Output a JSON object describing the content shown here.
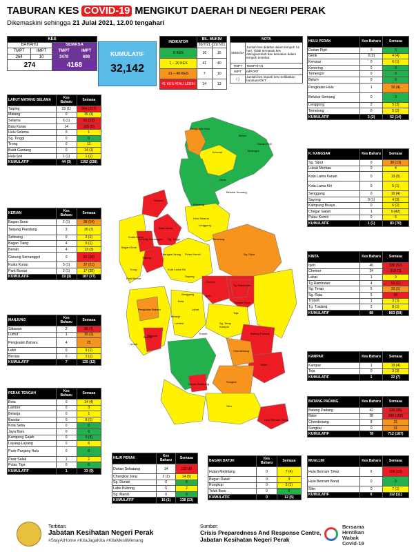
{
  "title": {
    "pre": "TABURAN KES",
    "highlight": "COVID-19",
    "post": "MENGIKUT DAERAH DI NEGERI PERAK"
  },
  "subtitle": {
    "pre": "Dikemaskini sehingga",
    "date": "21 Julai 2021, 12.00 tengahari"
  },
  "summary": {
    "kes_label": "KES",
    "baharu_label": "BAHARU",
    "semasa_label": "SEMASA",
    "tmpt_label": "TMPT",
    "impt_label": "IMPT",
    "baharu_tmpt": "264",
    "baharu_impt": "10",
    "semasa_tmpt": "3470",
    "semasa_impt": "698",
    "baharu_total": "274",
    "semasa_total": "4168",
    "kumulatif_label": "KUMULATIF",
    "kumulatif_value": "32,142"
  },
  "indicator": {
    "h1": "INDIKATOR",
    "h2": "BIL. MUKIM",
    "d1": "20/7/21",
    "d2": "21/7/21",
    "rows": [
      {
        "label": "0 KES",
        "a": "16",
        "b": "15",
        "color": "#22b14c"
      },
      {
        "label": "1 – 20 KES",
        "a": "41",
        "b": "40",
        "color": "#fff200"
      },
      {
        "label": "21 – 40 KES",
        "a": "7",
        "b": "10",
        "color": "#f7941d"
      },
      {
        "label": "41 KES ATAU LEBIH",
        "a": "14",
        "b": "13",
        "color": "#ed1c24"
      }
    ]
  },
  "nota": {
    "title": "NOTA",
    "semasa_label": "SEMASA",
    "semasa_text": "Jumlah kes didaftar dalam tempoh 14 hari. Tidak termasuk kes discaj/sembuh dan kematian dalam tempoh tersebut.",
    "tmpt_label": "TMPT",
    "tmpt_text": "TEMPATAN",
    "impt_label": "IMPT",
    "impt_text": "IMPORT",
    "paren_label": "( )",
    "paren_text": "Jumlah kes import/ kes melibatkan banduan/OKT"
  },
  "districts": [
    {
      "key": "larut",
      "name": "LARUT MATANG SELAMA",
      "h1": "Kes Baharu",
      "h2": "Semasa",
      "rows": [
        [
          "Taiping",
          "23 (1)",
          "964 (217)",
          "r"
        ],
        [
          "Matang",
          "0",
          "35 (1)",
          "y"
        ],
        [
          "Selama",
          "6 (1)",
          "61 (13)",
          "r"
        ],
        [
          "Batu Kurau",
          "14",
          "105 (5)",
          "r"
        ],
        [
          "Hulu Selama",
          "0",
          "1",
          "y"
        ],
        [
          "Sg. Tinggi",
          "0",
          "0",
          "g"
        ],
        [
          "Trong",
          "0",
          "11",
          "y"
        ],
        [
          "Bukit Gantang",
          "0",
          "14 (1)",
          "y"
        ],
        [
          "Hulu Ijok",
          "1 (1)",
          "1 (1)",
          "y"
        ]
      ],
      "total": [
        "KUMULATIF",
        "44 (3)",
        "1192 (238)"
      ]
    },
    {
      "key": "kerian",
      "name": "KERIAN",
      "h1": "Kes Baharu",
      "h2": "Semasa",
      "rows": [
        [
          "Bagan Serai",
          "1 (1)",
          "38 (14)",
          "o"
        ],
        [
          "Tanjung Piandang",
          "3",
          "20 (7)",
          "y"
        ],
        [
          "Selinsing",
          "0",
          "2 (1)",
          "y"
        ],
        [
          "Bagan Tiang",
          "4",
          "9 (1)",
          "y"
        ],
        [
          "Beriah",
          "4",
          "13 (3)",
          "y"
        ],
        [
          "Gunung Semanggol",
          "0",
          "51 (10)",
          "r"
        ],
        [
          "Kuala Kurau",
          "5 (1)",
          "37 (21)",
          "o"
        ],
        [
          "Parit Buntar",
          "2 (1)",
          "17 (20)",
          "y"
        ]
      ],
      "total": [
        "KUMULATIF",
        "19 (3)",
        "187 (77)"
      ]
    },
    {
      "key": "manjung",
      "name": "MANJUNG",
      "h1": "Kes Baharu",
      "h2": "Semasa",
      "rows": [
        [
          "Sitiawan",
          "2",
          "60 (7)",
          "r"
        ],
        [
          "Lumut",
          "1",
          "30 (3)",
          "o"
        ],
        [
          "Pengkalan Baharu",
          "4",
          "25",
          "o"
        ],
        [
          "Lekir",
          "0",
          "9 (1)",
          "y"
        ],
        [
          "Beruas",
          "0",
          "1 (1)",
          "y"
        ]
      ],
      "total": [
        "KUMULATIF",
        "7",
        "125 (12)"
      ]
    },
    {
      "key": "pt",
      "name": "PERAK TENGAH",
      "h1": "Kes Baharu",
      "h2": "Semasa",
      "rows": [
        [
          "Bota",
          "0",
          "14 (4)",
          "y"
        ],
        [
          "Lambor",
          "0",
          "3",
          "y"
        ],
        [
          "Belanja",
          "0",
          "1",
          "y"
        ],
        [
          "Bandar",
          "0",
          "8 (1)",
          "y"
        ],
        [
          "Kota Setia",
          "0",
          "0",
          "g"
        ],
        [
          "Jaya Baru",
          "0",
          "0",
          "g"
        ],
        [
          "Kampong Gajah",
          "0",
          "0 (4)",
          "g"
        ],
        [
          "Layang-Layang",
          "0",
          "6",
          "y"
        ],
        [
          "Pasir Panjang Hulu",
          "0",
          "0",
          "g"
        ],
        [
          "Pasir Salak",
          "1",
          "2",
          "y"
        ],
        [
          "Pulau Tiga",
          "0",
          "0",
          "g"
        ]
      ],
      "total": [
        "KUMULATIF",
        "1",
        "33 (9)"
      ]
    },
    {
      "key": "hp",
      "name": "HULU PERAK",
      "h1": "Kes Baharu",
      "h2": "Semasa",
      "rows": [
        [
          "Durian Pipit",
          "0",
          "0",
          "g"
        ],
        [
          "Gerik",
          "0 (2)",
          "4 (4)",
          "y"
        ],
        [
          "Kerunai",
          "0",
          "6 (1)",
          "y"
        ],
        [
          "Kenering",
          "0",
          "0",
          "g"
        ],
        [
          "Temengor",
          "0",
          "0",
          "g"
        ],
        [
          "Belum",
          "0",
          "0",
          "g"
        ],
        [
          "Pengkalan Hulu",
          "1",
          "32 (4)",
          "o"
        ],
        [
          "Belukar Semang",
          "0",
          "0",
          "g"
        ],
        [
          "Lenggong",
          "2",
          "5 (3)",
          "y"
        ],
        [
          "Temelong",
          "0",
          "5 (2)",
          "y"
        ]
      ],
      "total": [
        "KUMULATIF",
        "3 (2)",
        "52 (14)"
      ]
    },
    {
      "key": "kk",
      "name": "K. KANGSAR",
      "h1": "Kes Baharu",
      "h2": "Semasa",
      "rows": [
        [
          "Sg. Siput",
          "0",
          "30 (13)",
          "o"
        ],
        [
          "Lubuk Merbau",
          "0",
          "4",
          "y"
        ],
        [
          "Kota Lama Kanan",
          "0",
          "13 (5)",
          "y"
        ],
        [
          "Kota Lama Kiri",
          "0",
          "5 (1)",
          "y"
        ],
        [
          "Senggang",
          "0",
          "10 (4)",
          "y"
        ],
        [
          "Sayong",
          "0 (1)",
          "4 (3)",
          "y"
        ],
        [
          "Kampung Buaya",
          "0",
          "6 (2)",
          "y"
        ],
        [
          "Chegar Galah",
          "1",
          "6 (42)",
          "y"
        ],
        [
          "Pulau Kemiri",
          "0",
          "5",
          "y"
        ]
      ],
      "total": [
        "KUMULATIF",
        "1 (1)",
        "83 (70)"
      ]
    },
    {
      "key": "kinta",
      "name": "KINTA",
      "h1": "Kes Baharu",
      "h2": "Semasa",
      "rows": [
        [
          "Ipoh",
          "46",
          "336 (52)",
          "r"
        ],
        [
          "Chemor",
          "24",
          "319 (1)",
          "r"
        ],
        [
          "Lahat",
          "1",
          "9",
          "y"
        ],
        [
          "Tg Rambutan",
          "4",
          "51 (1)",
          "r"
        ],
        [
          "Sg. Terap",
          "5",
          "22 (1)",
          "o"
        ],
        [
          "Sg. Raia",
          "5",
          "55",
          "r"
        ],
        [
          "Tronoh",
          "1",
          "3 (1)",
          "y"
        ],
        [
          "Tg. Tualang",
          "2",
          "8 (1)",
          "y"
        ]
      ],
      "total": [
        "KUMULATIF",
        "88",
        "803 (58)"
      ]
    },
    {
      "key": "kampar",
      "name": "KAMPAR",
      "h1": "Kes Baharu",
      "h2": "Semasa",
      "rows": [
        [
          "Kampar",
          "1",
          "19 (4)",
          "y"
        ],
        [
          "Teja",
          "0",
          "3 (3)",
          "y"
        ]
      ],
      "total": [
        "KUMULATIF",
        "1",
        "22 (7)"
      ]
    },
    {
      "key": "bp",
      "name": "BATANG PADANG",
      "h1": "Kes Baharu",
      "h2": "Semasa",
      "rows": [
        [
          "Batang Padang",
          "42",
          "330 (35)",
          "r"
        ],
        [
          "Bidor",
          "28",
          "330 (152)",
          "r"
        ],
        [
          "Chenderiang",
          "8",
          "21",
          "o"
        ],
        [
          "Sungkai",
          "0",
          "31",
          "o"
        ]
      ],
      "total": [
        "KUMULATIF",
        "78",
        "712 (187)"
      ]
    },
    {
      "key": "hilir",
      "name": "HILIR PERAK",
      "h1": "Kes Baharu",
      "h2": "Semasa",
      "rows": [
        [
          "Durian Sebatang",
          "14",
          "122 (8)",
          "r"
        ],
        [
          "Changkat Jong",
          "2 (1)",
          "14 (5)",
          "y"
        ],
        [
          "Sg. Durian",
          "0",
          "0",
          "g"
        ],
        [
          "Labu Kubong",
          "0",
          "2",
          "y"
        ],
        [
          "Sg. Manik",
          "0",
          "0",
          "g"
        ]
      ],
      "total": [
        "KUMULATIF",
        "16 (1)",
        "138 (13)"
      ]
    },
    {
      "key": "bd",
      "name": "BAGAN DATUK",
      "h1": "Kes Baharu",
      "h2": "Semasa",
      "rows": [
        [
          "Hutan Melintang",
          "0",
          "7 (4)",
          "y"
        ],
        [
          "Bagan Datuk",
          "0",
          "3",
          "y"
        ],
        [
          "Rungkup",
          "0",
          "2 (1)",
          "y"
        ],
        [
          "Teluk Baru",
          "0",
          "0",
          "g"
        ]
      ],
      "total": [
        "KUMULATIF",
        "0",
        "12 (5)"
      ]
    },
    {
      "key": "muallim",
      "name": "MUALLIM",
      "h1": "Kes Baharu",
      "h2": "Semasa",
      "rows": [
        [
          "Hulu Bernam Timur",
          "6",
          "105 (10)",
          "r"
        ],
        [
          "Hulu Bernam Barat",
          "0",
          "0",
          "g"
        ],
        [
          "Slim",
          "0",
          "7 (1)",
          "y"
        ]
      ],
      "total": [
        "KUMULATIF",
        "6",
        "112 (11)"
      ]
    }
  ],
  "map_labels": [
    "Pengkalan Hulu",
    "Kerunai",
    "Belum",
    "Temengor",
    "Gerik",
    "Durian Pipit",
    "Kenering",
    "Belukar Semang",
    "Hulu Selama",
    "Selama",
    "Batu Kurau",
    "Lenggong",
    "Temelong",
    "Sg. Tinggi",
    "Taiping",
    "Trong",
    "Changkat Jering",
    "Pulau Kemiri",
    "Kota Lama Kiri",
    "Bagan Serai",
    "Kuala Kurau",
    "Parit Buntar",
    "Gunung Semanggol",
    "Sg. Siput",
    "Sayong",
    "Senggang",
    "Chemor",
    "Tg. Rambutan",
    "Sungai Raya",
    "Ipoh",
    "Sg. Terap",
    "Lahat",
    "Bota",
    "Lambor",
    "Pengkalan Baharu",
    "Beruas",
    "Lumut",
    "Sitiawan",
    "Belanja",
    "Teja",
    "Kampar",
    "Tronoh",
    "Chenderiang",
    "Batang Padang",
    "Bidor",
    "Sungkai",
    "Durian Sebatang",
    "Hulu Bernam Timur",
    "Slim"
  ],
  "footer": {
    "left_label": "Terbitan:",
    "org": "Jabatan Kesihatan Negeri Perak",
    "tags": "#StayAtHome #KitaJagaKita #KitaMestiMenang",
    "right_label": "Sumber:",
    "source1": "Crisis Preparedness And Response Centre,",
    "source2": "Jabatan Kesihatan Negeri Perak",
    "logo_text1": "Bersama",
    "logo_text2": "Hentikan",
    "logo_text3": "Wabak",
    "logo_text4": "Covid-19"
  }
}
